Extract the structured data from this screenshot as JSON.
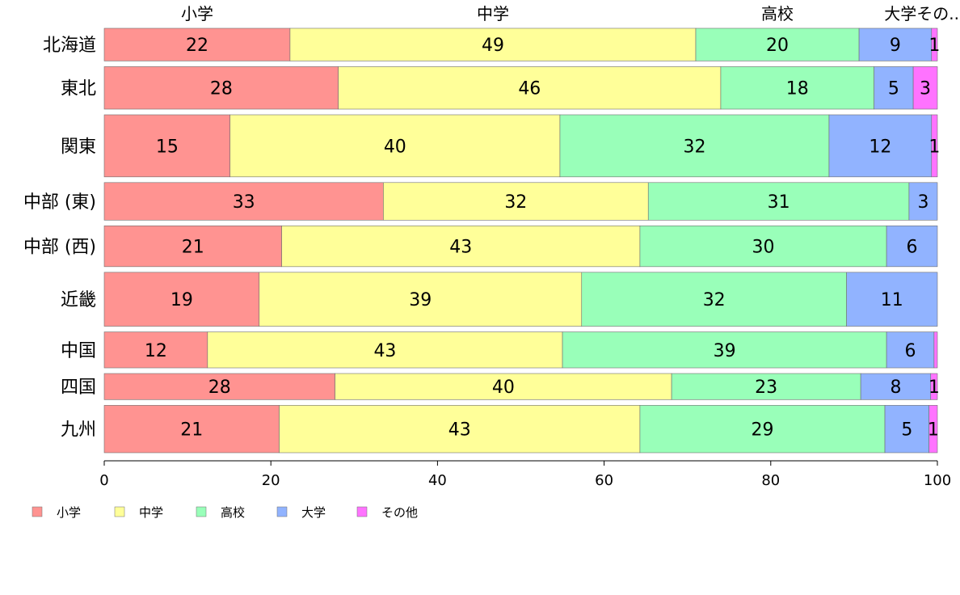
{
  "chart_data": {
    "type": "bar",
    "orientation": "horizontal",
    "stacked": true,
    "title": "",
    "xlabel": "",
    "ylabel": "",
    "xlim": [
      0,
      100
    ],
    "xticks": [
      0,
      20,
      40,
      60,
      80,
      100
    ],
    "top_labels": [
      "小学",
      "中学",
      "高校",
      "大学その.."
    ],
    "categories": [
      "北海道",
      "東北",
      "関東",
      "中部 (東)",
      "中部 (西)",
      "近畿",
      "中国",
      "四国",
      "九州"
    ],
    "row_weights": [
      1.0,
      1.3,
      1.9,
      1.15,
      1.25,
      1.65,
      1.1,
      0.8,
      1.45
    ],
    "series": [
      {
        "name": "小学",
        "color": "#ff9391",
        "values": [
          22.3,
          28.1,
          15.1,
          33.5,
          21.3,
          18.6,
          12.4,
          27.7,
          21.0
        ]
      },
      {
        "name": "中学",
        "color": "#ffff99",
        "values": [
          48.7,
          45.9,
          39.6,
          31.8,
          43.0,
          38.7,
          42.6,
          40.4,
          43.3
        ]
      },
      {
        "name": "高校",
        "color": "#99ffb9",
        "values": [
          19.6,
          18.4,
          32.3,
          31.3,
          29.6,
          31.8,
          38.9,
          22.7,
          29.4
        ]
      },
      {
        "name": "大学",
        "color": "#91b3ff",
        "values": [
          8.7,
          4.7,
          12.3,
          3.4,
          6.1,
          10.9,
          5.7,
          8.4,
          5.3
        ]
      },
      {
        "name": "その他",
        "color": "#ff73ff",
        "values": [
          0.7,
          2.9,
          0.7,
          0,
          0,
          0,
          0.4,
          0.8,
          1.0
        ]
      }
    ],
    "data_labels": [
      [
        "22",
        "49",
        "20",
        "9",
        "1"
      ],
      [
        "28",
        "46",
        "18",
        "5",
        "3"
      ],
      [
        "15",
        "40",
        "32",
        "12",
        "1"
      ],
      [
        "33",
        "32",
        "31",
        "3",
        ""
      ],
      [
        "21",
        "43",
        "30",
        "6",
        ""
      ],
      [
        "19",
        "39",
        "32",
        "11",
        ""
      ],
      [
        "12",
        "43",
        "39",
        "6",
        ""
      ],
      [
        "28",
        "40",
        "23",
        "8",
        "1"
      ],
      [
        "21",
        "43",
        "29",
        "5",
        "1"
      ]
    ],
    "legend": {
      "position": "bottom-left",
      "entries": [
        "小学",
        "中学",
        "高校",
        "大学",
        "その他"
      ]
    },
    "grid": false
  }
}
